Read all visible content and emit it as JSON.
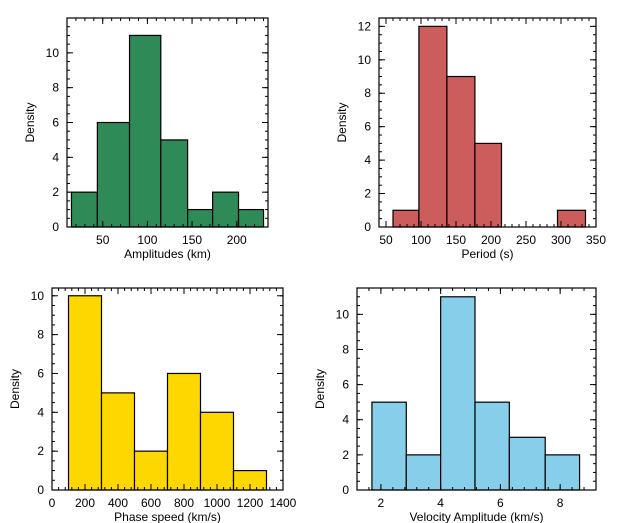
{
  "chart_data": [
    {
      "type": "bar",
      "title": "",
      "xlabel": "Amplitudes (km)",
      "ylabel": "Density",
      "color": "#2e8b57",
      "bins": [
        [
          15,
          44,
          2
        ],
        [
          44,
          80,
          6
        ],
        [
          80,
          115,
          11
        ],
        [
          115,
          145,
          5
        ],
        [
          145,
          173,
          1
        ],
        [
          173,
          202,
          2
        ],
        [
          202,
          230,
          1
        ]
      ],
      "xlim": [
        10,
        235
      ],
      "ylim": [
        0,
        12
      ],
      "xticks": [
        50,
        100,
        150,
        200
      ],
      "yticks": [
        0,
        2,
        4,
        6,
        8,
        10
      ],
      "xtick_labels": [
        "50",
        "100",
        "150",
        "200"
      ],
      "ytick_labels": [
        "0",
        "2",
        "4",
        "6",
        "8",
        "10"
      ]
    },
    {
      "type": "bar",
      "title": "",
      "xlabel": "Period (s)",
      "ylabel": "Density",
      "color": "#cd5c5c",
      "bins": [
        [
          60,
          97,
          1
        ],
        [
          97,
          137,
          12
        ],
        [
          137,
          177,
          9
        ],
        [
          177,
          215,
          5
        ],
        [
          295,
          335,
          1
        ]
      ],
      "xlim": [
        40,
        350
      ],
      "ylim": [
        0,
        12.5
      ],
      "xticks": [
        50,
        100,
        150,
        200,
        250,
        300,
        350
      ],
      "yticks": [
        0,
        2,
        4,
        6,
        8,
        10,
        12
      ],
      "xtick_labels": [
        "50",
        "100",
        "150",
        "200",
        "250",
        "300",
        "350"
      ],
      "ytick_labels": [
        "0",
        "2",
        "4",
        "6",
        "8",
        "10",
        "12"
      ]
    },
    {
      "type": "bar",
      "title": "",
      "xlabel": "Phase speed (km/s)",
      "ylabel": "Density",
      "color": "#ffd700",
      "bins": [
        [
          100,
          300,
          10
        ],
        [
          300,
          500,
          5
        ],
        [
          500,
          700,
          2
        ],
        [
          700,
          900,
          6
        ],
        [
          900,
          1100,
          4
        ],
        [
          1100,
          1300,
          1
        ]
      ],
      "xlim": [
        0,
        1400
      ],
      "ylim": [
        0,
        10.4
      ],
      "xticks": [
        0,
        200,
        400,
        600,
        800,
        1000,
        1200,
        1400
      ],
      "yticks": [
        0,
        2,
        4,
        6,
        8,
        10
      ],
      "xtick_labels": [
        "0",
        "200",
        "400",
        "600",
        "800",
        "1000",
        "1200",
        "1400"
      ],
      "ytick_labels": [
        "0",
        "2",
        "4",
        "6",
        "8",
        "10"
      ]
    },
    {
      "type": "bar",
      "title": "",
      "xlabel": "Velocity Amplitude (km/s)",
      "ylabel": "Density",
      "color": "#87ceeb",
      "bins": [
        [
          1.7,
          2.85,
          5
        ],
        [
          2.85,
          4.0,
          2
        ],
        [
          4.0,
          5.15,
          11
        ],
        [
          5.15,
          6.3,
          5
        ],
        [
          6.3,
          7.5,
          3
        ],
        [
          7.5,
          8.65,
          2
        ]
      ],
      "xlim": [
        1.2,
        9.2
      ],
      "ylim": [
        0,
        11.5
      ],
      "xticks": [
        2,
        4,
        6,
        8
      ],
      "yticks": [
        0,
        2,
        4,
        6,
        8,
        10
      ],
      "xtick_labels": [
        "2",
        "4",
        "6",
        "8"
      ],
      "ytick_labels": [
        "0",
        "2",
        "4",
        "6",
        "8",
        "10"
      ]
    }
  ]
}
